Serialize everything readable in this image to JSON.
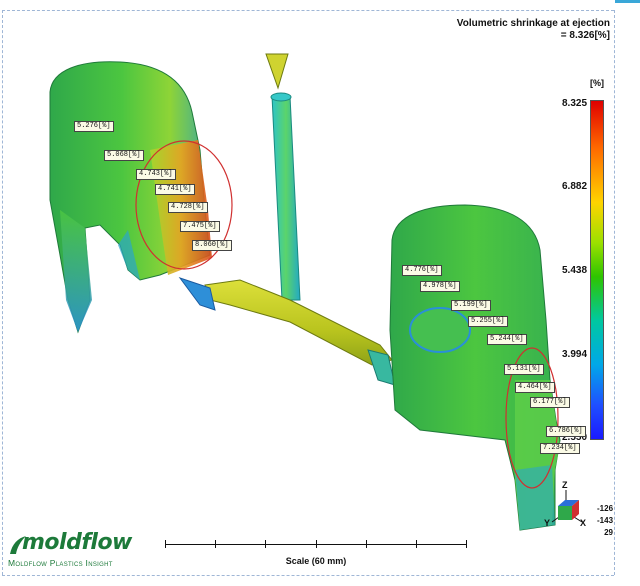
{
  "result": {
    "title": "Volumetric shrinkage at ejection",
    "value": "= 8.326[%]"
  },
  "legend": {
    "unit": "[%]",
    "ticks": [
      "8.325",
      "6.882",
      "5.438",
      "3.994",
      "2.550"
    ],
    "gradient": [
      "#e00000",
      "#ff6a00",
      "#ffd400",
      "#9be000",
      "#2ec400",
      "#00c8a0",
      "#00a8e8",
      "#1f4fff",
      "#1a1aff"
    ]
  },
  "left_part_labels": [
    "5.276[%]",
    "5.068[%]",
    "4.743[%]",
    "4.741[%]",
    "4.728[%]",
    "7.475[%]",
    "8.060[%]"
  ],
  "right_part_labels": [
    "4.776[%]",
    "4.978[%]",
    "5.199[%]",
    "5.255[%]",
    "5.244[%]",
    "5.131[%]",
    "4.464[%]",
    "6.177[%]",
    "6.786[%]",
    "7.234[%]"
  ],
  "triad": {
    "axis_z": "Z",
    "axis_y": "Y",
    "axis_x": "X",
    "rot_1": "-126",
    "rot_2": "-143",
    "rot_3": "29"
  },
  "scale": {
    "label": "Scale (60 mm)"
  },
  "branding": {
    "logo_word": "moldflow",
    "logo_sub": "Moldflow Plastics Insight"
  },
  "colors": {
    "part_green": "#3fbf3a",
    "runner_yellow": "#c9cf22",
    "highlight_red": "#d03030",
    "logo_green": "#1d7a3a"
  }
}
